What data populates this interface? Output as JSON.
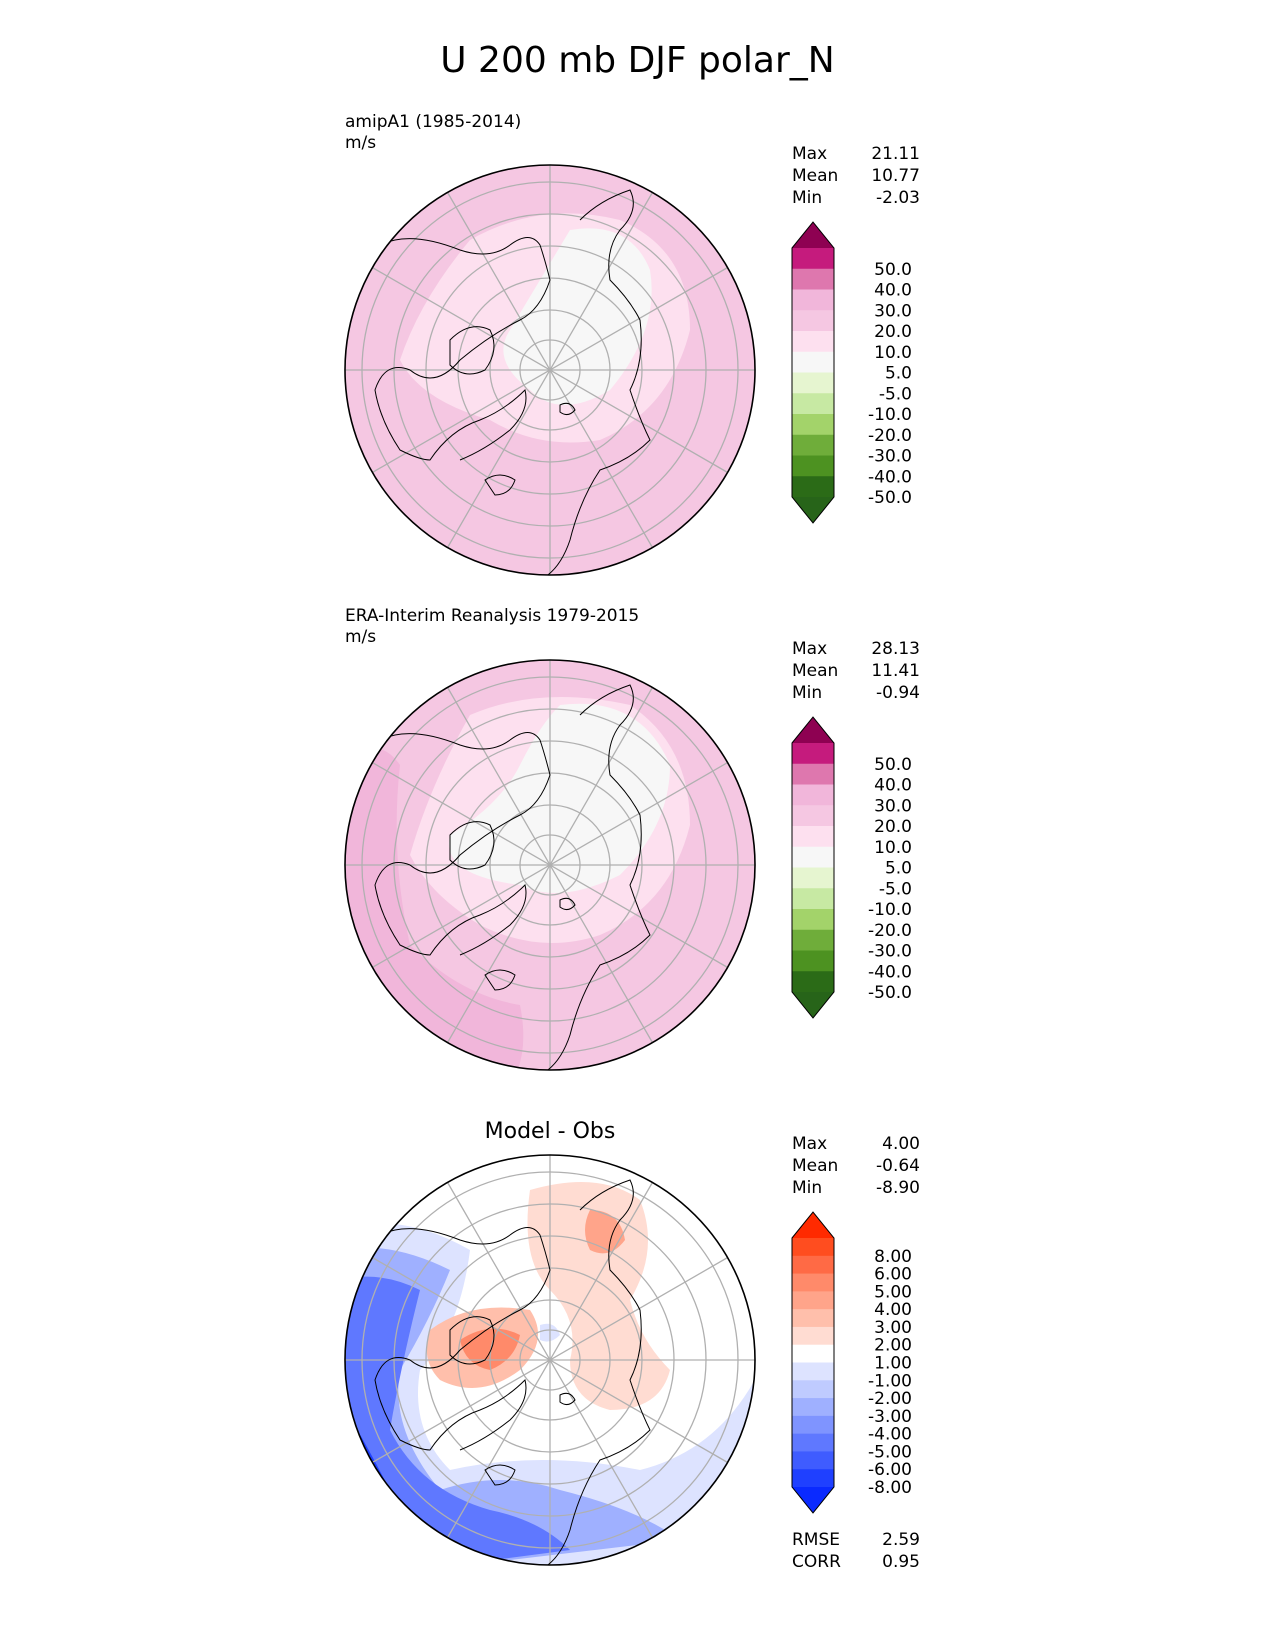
{
  "figure": {
    "title": "U 200 mb DJF polar_N"
  },
  "panels": [
    {
      "label_line1": "amipA1 (1985-2014)",
      "label_line2": "m/s",
      "stats": [
        {
          "name": "Max",
          "value": "21.11"
        },
        {
          "name": "Mean",
          "value": "10.77"
        },
        {
          "name": "Min",
          "value": "-2.03"
        }
      ],
      "colorbar": {
        "labels": [
          "50.0",
          "40.0",
          "30.0",
          "20.0",
          "10.0",
          "5.0",
          "-5.0",
          "-10.0",
          "-20.0",
          "-30.0",
          "-40.0",
          "-50.0"
        ],
        "colors": [
          "#8e0152",
          "#c51b7d",
          "#de77ae",
          "#f1b6da",
          "#f5c7e2",
          "#fde0ef",
          "#f7f7f7",
          "#e6f5d0",
          "#c7e9a3",
          "#a3d36a",
          "#6fad3a",
          "#4d9221",
          "#2b6b17",
          "#276419"
        ]
      }
    },
    {
      "label_line1": "ERA-Interim Reanalysis 1979-2015",
      "label_line2": "m/s",
      "stats": [
        {
          "name": "Max",
          "value": "28.13"
        },
        {
          "name": "Mean",
          "value": "11.41"
        },
        {
          "name": "Min",
          "value": "-0.94"
        }
      ],
      "colorbar": {
        "labels": [
          "50.0",
          "40.0",
          "30.0",
          "20.0",
          "10.0",
          "5.0",
          "-5.0",
          "-10.0",
          "-20.0",
          "-30.0",
          "-40.0",
          "-50.0"
        ],
        "colors": [
          "#8e0152",
          "#c51b7d",
          "#de77ae",
          "#f1b6da",
          "#f5c7e2",
          "#fde0ef",
          "#f7f7f7",
          "#e6f5d0",
          "#c7e9a3",
          "#a3d36a",
          "#6fad3a",
          "#4d9221",
          "#2b6b17",
          "#276419"
        ]
      }
    },
    {
      "title": "Model - Obs",
      "stats": [
        {
          "name": "Max",
          "value": "4.00"
        },
        {
          "name": "Mean",
          "value": "-0.64"
        },
        {
          "name": "Min",
          "value": "-8.90"
        }
      ],
      "colorbar": {
        "labels": [
          "8.00",
          "6.00",
          "5.00",
          "4.00",
          "3.00",
          "2.00",
          "1.00",
          "-1.00",
          "-2.00",
          "-3.00",
          "-4.00",
          "-5.00",
          "-6.00",
          "-8.00"
        ],
        "colors": [
          "#ff2a00",
          "#ff4d1f",
          "#ff6a45",
          "#ff8a6a",
          "#ffa48a",
          "#ffbfab",
          "#ffdcd2",
          "#ffffff",
          "#dde3ff",
          "#bfcbff",
          "#9fb0ff",
          "#7f94ff",
          "#5f78ff",
          "#3f5cff",
          "#1f40ff",
          "#0a2aff"
        ]
      },
      "bottom_stats": [
        {
          "name": "RMSE",
          "value": "2.59"
        },
        {
          "name": "CORR",
          "value": "0.95"
        }
      ]
    }
  ],
  "colors": {
    "map_outline": "#000000",
    "graticule": "#b0b0b0",
    "coastline": "#000000"
  }
}
